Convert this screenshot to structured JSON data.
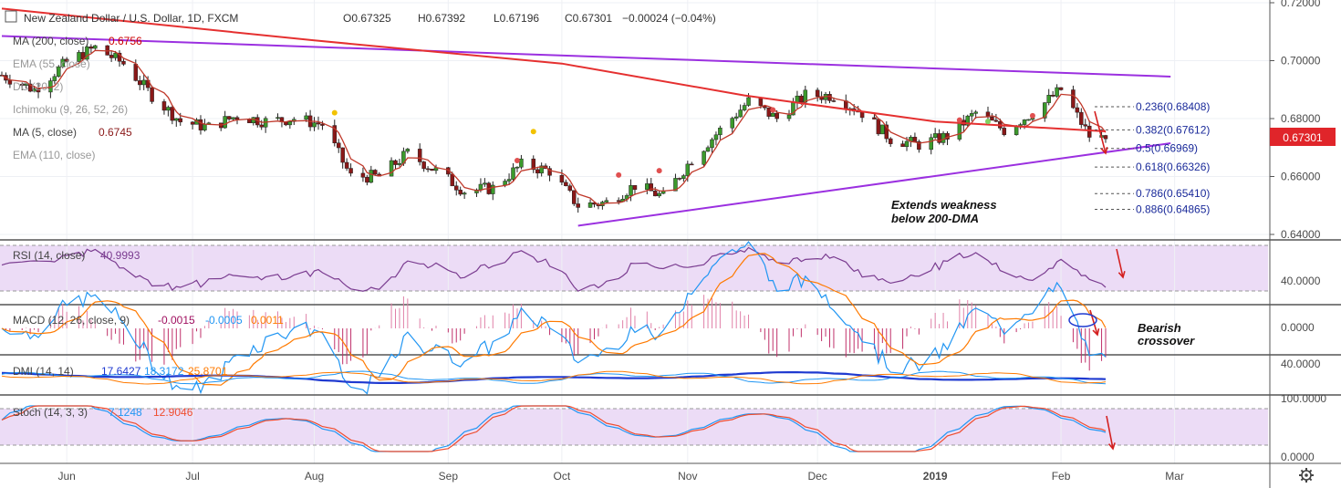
{
  "header": {
    "symbol": "New Zealand Dollar / U.S. Dollar, 1D, FXCM",
    "open": "O0.67325",
    "high": "H0.67392",
    "low": "L0.67196",
    "close": "C0.67301",
    "change": "−0.00024 (−0.04%)"
  },
  "indicators": {
    "ma200": "MA (200, close)",
    "ma200_value": "0.6756",
    "ema55": "EMA (55, close)",
    "dc": "DC (20, 2)",
    "ichimoku": "Ichimoku (9, 26, 52, 26)",
    "ma5": "MA (5, close)",
    "ma5_value": "0.6745",
    "ema110": "EMA (110, close)"
  },
  "price_badge": "0.67301",
  "colors": {
    "bull": "#3c9a2c",
    "bear": "#8a1818",
    "ma200": "#e53030",
    "ma5": "#c0392b",
    "trendline": "#9b30e0",
    "fib_text": "#1a2a9a",
    "badge": "#e0252a",
    "rsi": "#7a3c90",
    "macd": "#2196f3",
    "signal": "#ff7a00",
    "dmi_adx": "#1f3ad0",
    "stoch_k": "#2196f3",
    "stoch_d": "#ef4d2f",
    "band_fill": "#ecdcf6",
    "arrow": "#d42020"
  },
  "annotations": {
    "weakness_line1": "Extends weakness",
    "weakness_line2": "below 200-DMA",
    "bearish_line1": "Bearish",
    "bearish_line2": "crossover"
  },
  "fib_levels": [
    {
      "label": "0.236(0.68408)",
      "value": 0.68408
    },
    {
      "label": "0.382(0.67612)",
      "value": 0.67612
    },
    {
      "label": "0.5(0.66969)",
      "value": 0.66969
    },
    {
      "label": "0.618(0.66326)",
      "value": 0.66326
    },
    {
      "label": "0.786(0.65410)",
      "value": 0.6541
    },
    {
      "label": "0.886(0.64865)",
      "value": 0.64865
    }
  ],
  "panes": {
    "rsi": {
      "label": "RSI (14, close)",
      "value": "40.9993",
      "tick": "40.0000"
    },
    "macd": {
      "label": "MACD (12, 26, close, 9)",
      "v1": "-0.0015",
      "v2": "-0.0005",
      "v3": "0.0011",
      "tick": "0.0000"
    },
    "dmi": {
      "label": "DMI (14, 14)",
      "v1": "17.6427",
      "v2": "18.3172",
      "v3": "25.8701",
      "tick": "40.0000"
    },
    "stoch": {
      "label": "Stoch (14, 3, 3)",
      "v1": "7.1248",
      "v2": "12.9046",
      "tick_top": "100.0000",
      "tick_bottom": "0.0000"
    }
  },
  "chart_data": {
    "type": "candlestick",
    "title": "New Zealand Dollar / U.S. Dollar, 1D, FXCM",
    "x_ticks": [
      "Jun",
      "Jul",
      "Aug",
      "Sep",
      "Oct",
      "Nov",
      "Dec",
      "2019",
      "Feb",
      "Mar"
    ],
    "y_ticks": [
      "0.72000",
      "0.70000",
      "0.68000",
      "0.66000",
      "0.64000"
    ],
    "ylim": [
      0.64,
      0.72
    ],
    "last_close": 0.67301,
    "close_path": [
      {
        "date": "2018-05-16",
        "close": 0.695
      },
      {
        "date": "2018-05-24",
        "close": 0.69
      },
      {
        "date": "2018-06-01",
        "close": 0.6995
      },
      {
        "date": "2018-06-08",
        "close": 0.7045
      },
      {
        "date": "2018-06-15",
        "close": 0.699
      },
      {
        "date": "2018-06-22",
        "close": 0.688
      },
      {
        "date": "2018-06-29",
        "close": 0.679
      },
      {
        "date": "2018-07-06",
        "close": 0.677
      },
      {
        "date": "2018-07-13",
        "close": 0.681
      },
      {
        "date": "2018-07-20",
        "close": 0.679
      },
      {
        "date": "2018-07-27",
        "close": 0.68
      },
      {
        "date": "2018-08-03",
        "close": 0.678
      },
      {
        "date": "2018-08-10",
        "close": 0.66
      },
      {
        "date": "2018-08-17",
        "close": 0.66
      },
      {
        "date": "2018-08-24",
        "close": 0.668
      },
      {
        "date": "2018-08-31",
        "close": 0.662
      },
      {
        "date": "2018-09-07",
        "close": 0.655
      },
      {
        "date": "2018-09-14",
        "close": 0.656
      },
      {
        "date": "2018-09-21",
        "close": 0.664
      },
      {
        "date": "2018-09-28",
        "close": 0.662
      },
      {
        "date": "2018-10-05",
        "close": 0.65
      },
      {
        "date": "2018-10-12",
        "close": 0.651
      },
      {
        "date": "2018-10-19",
        "close": 0.657
      },
      {
        "date": "2018-10-26",
        "close": 0.653
      },
      {
        "date": "2018-11-02",
        "close": 0.666
      },
      {
        "date": "2018-11-09",
        "close": 0.676
      },
      {
        "date": "2018-11-16",
        "close": 0.686
      },
      {
        "date": "2018-11-23",
        "close": 0.68
      },
      {
        "date": "2018-11-30",
        "close": 0.688
      },
      {
        "date": "2018-12-07",
        "close": 0.688
      },
      {
        "date": "2018-12-14",
        "close": 0.682
      },
      {
        "date": "2018-12-21",
        "close": 0.673
      },
      {
        "date": "2018-12-28",
        "close": 0.671
      },
      {
        "date": "2019-01-04",
        "close": 0.674
      },
      {
        "date": "2019-01-11",
        "close": 0.682
      },
      {
        "date": "2019-01-18",
        "close": 0.676
      },
      {
        "date": "2019-01-25",
        "close": 0.682
      },
      {
        "date": "2019-02-01",
        "close": 0.69
      },
      {
        "date": "2019-02-08",
        "close": 0.674
      },
      {
        "date": "2019-02-12",
        "close": 0.673
      }
    ],
    "series": [
      {
        "name": "MA (200, close)",
        "role": "ma200"
      },
      {
        "name": "MA (5, close)",
        "role": "ma5"
      }
    ]
  }
}
